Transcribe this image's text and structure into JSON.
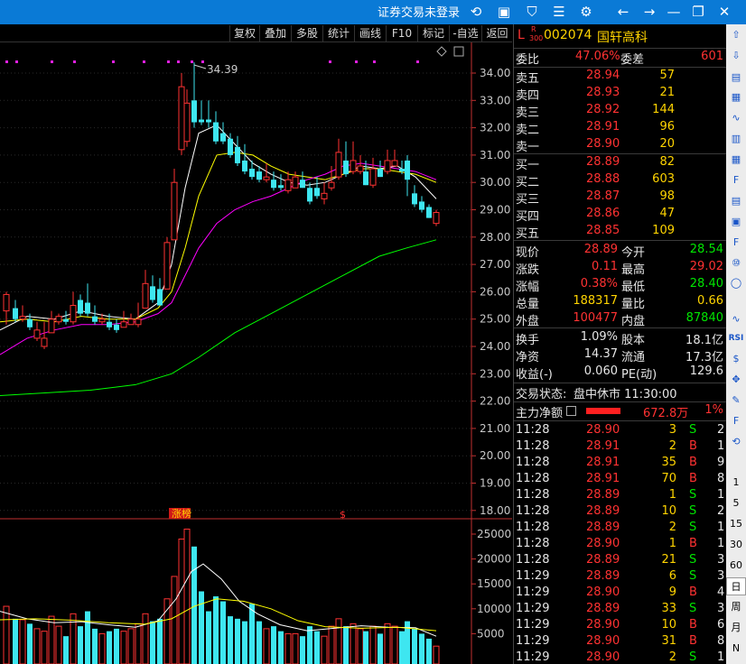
{
  "titlebar": {
    "login_text": "证券交易未登录",
    "icons": [
      "refresh-icon",
      "dialog-icon",
      "shirt-icon",
      "list-icon",
      "settings-icon",
      "back-arrow-icon",
      "forward-arrow-icon",
      "minimize-icon",
      "restore-icon",
      "close-icon"
    ]
  },
  "toolbar": {
    "buttons": [
      "复权",
      "叠加",
      "多股",
      "统计",
      "画线",
      "F10",
      "标记",
      "-自选",
      "返回"
    ]
  },
  "kline": {
    "high_label": "34.39",
    "price_ticks": [
      "34.00",
      "33.00",
      "32.00",
      "31.00",
      "30.00",
      "29.00",
      "28.00",
      "27.00",
      "26.00",
      "25.00",
      "24.00",
      "23.00",
      "22.00",
      "21.00",
      "20.00",
      "19.00",
      "18.00"
    ],
    "event_label": "涨榜",
    "event_mark": "$",
    "volume_ticks": [
      "25000",
      "20000",
      "15000",
      "10000",
      "5000"
    ]
  },
  "stock": {
    "prefix": "L",
    "badge_top": "R",
    "badge_bottom": "300",
    "code": "002074",
    "name": "国轩高科"
  },
  "ratio": {
    "label": "委比",
    "value": "47.06%",
    "diff_label": "委差",
    "diff_value": "601"
  },
  "asks": [
    {
      "label": "卖五",
      "price": "28.94",
      "vol": "57"
    },
    {
      "label": "卖四",
      "price": "28.93",
      "vol": "21"
    },
    {
      "label": "卖三",
      "price": "28.92",
      "vol": "144"
    },
    {
      "label": "卖二",
      "price": "28.91",
      "vol": "96"
    },
    {
      "label": "卖一",
      "price": "28.90",
      "vol": "20"
    }
  ],
  "bids": [
    {
      "label": "买一",
      "price": "28.89",
      "vol": "82"
    },
    {
      "label": "买二",
      "price": "28.88",
      "vol": "603"
    },
    {
      "label": "买三",
      "price": "28.87",
      "vol": "98"
    },
    {
      "label": "买四",
      "price": "28.86",
      "vol": "47"
    },
    {
      "label": "买五",
      "price": "28.85",
      "vol": "109"
    }
  ],
  "stats": [
    {
      "l1": "现价",
      "v1": "28.89",
      "c1": "red",
      "l2": "今开",
      "v2": "28.54",
      "c2": "green"
    },
    {
      "l1": "涨跌",
      "v1": "0.11",
      "c1": "red",
      "l2": "最高",
      "v2": "29.02",
      "c2": "red"
    },
    {
      "l1": "涨幅",
      "v1": "0.38%",
      "c1": "red",
      "l2": "最低",
      "v2": "28.40",
      "c2": "green"
    },
    {
      "l1": "总量",
      "v1": "188317",
      "c1": "yellow",
      "l2": "量比",
      "v2": "0.66",
      "c2": "yellow"
    },
    {
      "l1": "外盘",
      "v1": "100477",
      "c1": "red",
      "l2": "内盘",
      "v2": "87840",
      "c2": "green"
    }
  ],
  "fundamentals": [
    {
      "l1": "换手",
      "v1": "1.09%",
      "l2": "股本",
      "v2": "18.1亿"
    },
    {
      "l1": "净资",
      "v1": "14.37",
      "l2": "流通",
      "v2": "17.3亿"
    },
    {
      "l1": "收益(-)",
      "v1": "0.060",
      "l2": "PE(动)",
      "v2": "129.6"
    }
  ],
  "trade_status": {
    "label": "交易状态:",
    "value": "盘中休市 11:30:00"
  },
  "main_flow": {
    "label": "主力净额",
    "value": "672.8万",
    "pct": "1%"
  },
  "ticks": [
    {
      "t": "11:28",
      "p": "28.90",
      "v": "3",
      "s": "S",
      "n": "2"
    },
    {
      "t": "11:28",
      "p": "28.91",
      "v": "2",
      "s": "B",
      "n": "1"
    },
    {
      "t": "11:28",
      "p": "28.91",
      "v": "35",
      "s": "B",
      "n": "9"
    },
    {
      "t": "11:28",
      "p": "28.91",
      "v": "70",
      "s": "B",
      "n": "8"
    },
    {
      "t": "11:28",
      "p": "28.89",
      "v": "1",
      "s": "S",
      "n": "1"
    },
    {
      "t": "11:28",
      "p": "28.89",
      "v": "10",
      "s": "S",
      "n": "2"
    },
    {
      "t": "11:28",
      "p": "28.89",
      "v": "2",
      "s": "S",
      "n": "1"
    },
    {
      "t": "11:28",
      "p": "28.90",
      "v": "1",
      "s": "B",
      "n": "1"
    },
    {
      "t": "11:28",
      "p": "28.89",
      "v": "21",
      "s": "S",
      "n": "3"
    },
    {
      "t": "11:29",
      "p": "28.89",
      "v": "6",
      "s": "S",
      "n": "3"
    },
    {
      "t": "11:29",
      "p": "28.90",
      "v": "9",
      "s": "B",
      "n": "4"
    },
    {
      "t": "11:29",
      "p": "28.89",
      "v": "33",
      "s": "S",
      "n": "3"
    },
    {
      "t": "11:29",
      "p": "28.90",
      "v": "10",
      "s": "B",
      "n": "6"
    },
    {
      "t": "11:29",
      "p": "28.90",
      "v": "31",
      "s": "B",
      "n": "8"
    },
    {
      "t": "11:29",
      "p": "28.90",
      "v": "2",
      "s": "S",
      "n": "1"
    }
  ],
  "strip": {
    "icons": [
      "up-arrow-icon",
      "down-arrow-icon",
      "report-icon",
      "table-icon",
      "line-chart-icon",
      "kline-icon",
      "grid-icon",
      "f10-icon",
      "doc-icon",
      "bookmark-icon",
      "f12-icon",
      "f10-alt-icon",
      "circle-icon",
      "wave-icon",
      "rsi-icon",
      "dollar-icon",
      "move-icon",
      "pencil-icon",
      "f5-icon",
      "refresh-icon"
    ],
    "rsi_text": "RSI",
    "periods": [
      "1",
      "5",
      "15",
      "30",
      "60",
      "日",
      "周",
      "月",
      "N"
    ]
  },
  "colors": {
    "up": "#ff3232",
    "down": "#3ee6f0",
    "ma5": "#ffffff",
    "ma10": "#ffff00",
    "ma20": "#ff00ff",
    "ma60": "#00ff00"
  }
}
